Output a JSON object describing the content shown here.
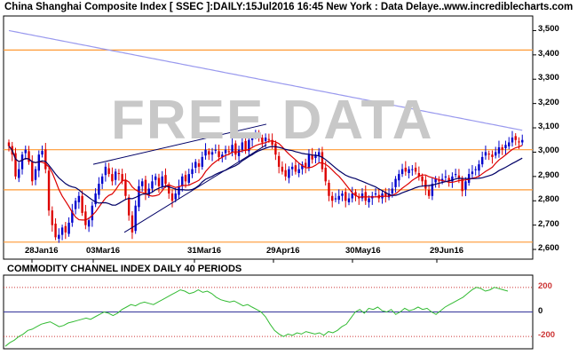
{
  "header": {
    "title": "China Shanghai Composite Index [ SSEC ]:DAILY:15Jul2016 16:45 New York : Data Delaye..",
    "site": "www.incrediblecharts.com"
  },
  "watermark": "FREE DATA",
  "indicator_title": "COMMODITY CHANNEL INDEX DAILY 40 PERIODS",
  "colors": {
    "up_candle": "#0000cc",
    "down_candle": "#dd0000",
    "ma_short": "#dd0000",
    "ma_mid": "#000066",
    "ma_long": "#9999ee",
    "support_lines": "#ff9933",
    "cci_line": "#33bb33"
  },
  "chart_data": [
    {
      "type": "candlestick",
      "ylim": [
        2560,
        3560
      ],
      "yticks": [
        2600,
        2700,
        2800,
        2900,
        3000,
        3100,
        3200,
        3300,
        3400,
        3500
      ],
      "ytick_labels": [
        "2,600",
        "2,700",
        "2,800",
        "2,900",
        "3,000",
        "3,100",
        "3,200",
        "3,300",
        "3,400",
        "3,500"
      ],
      "xtick_labels": [
        "28Jan16",
        "03Mar16",
        "31Mar16",
        "29Apr16",
        "30May16",
        "29Jun16"
      ],
      "horizontal_levels": [
        3420,
        3010,
        2845,
        2630
      ],
      "close": [
        3025,
        2990,
        2900,
        2930,
        2990,
        3010,
        2960,
        2880,
        2930,
        2990,
        3005,
        2930,
        2760,
        2700,
        2650,
        2660,
        2690,
        2670,
        2710,
        2760,
        2800,
        2820,
        2750,
        2700,
        2720,
        2780,
        2830,
        2870,
        2900,
        2940,
        2910,
        2880,
        2920,
        2910,
        2880,
        2820,
        2740,
        2670,
        2780,
        2860,
        2880,
        2830,
        2850,
        2880,
        2900,
        2860,
        2900,
        2870,
        2830,
        2800,
        2830,
        2860,
        2900,
        2880,
        2910,
        2930,
        2960,
        2940,
        2980,
        3010,
        2990,
        3000,
        3010,
        2980,
        2990,
        3010,
        3000,
        3030,
        2990,
        3010,
        3040,
        3010,
        3050,
        3060,
        3070,
        3060,
        3040,
        3060,
        3050,
        3030,
        2990,
        2940,
        2920,
        2900,
        2930,
        2940,
        2920,
        2930,
        2950,
        2940,
        2990,
        2970,
        2990,
        3000,
        2930,
        2880,
        2820,
        2800,
        2810,
        2820,
        2830,
        2800,
        2810,
        2830,
        2820,
        2810,
        2830,
        2800,
        2810,
        2820,
        2830,
        2810,
        2830,
        2820,
        2830,
        2850,
        2890,
        2910,
        2930,
        2920,
        2930,
        2930,
        2920,
        2900,
        2880,
        2850,
        2820,
        2870,
        2890,
        2880,
        2890,
        2900,
        2880,
        2900,
        2910,
        2890,
        2840,
        2880,
        2910,
        2920,
        2930,
        2950,
        2980,
        3000,
        2990,
        2980,
        3000,
        3020,
        3010,
        3030,
        3040,
        3060,
        3050,
        3040,
        3050
      ]
    },
    {
      "type": "line",
      "title": "COMMODITY CHANNEL INDEX DAILY 40 PERIODS",
      "ylim": [
        -300,
        300
      ],
      "yticks": [
        200,
        0,
        -200
      ],
      "ytick_labels": [
        "200",
        "0",
        "-200"
      ],
      "values": [
        -280,
        -250,
        -230,
        -200,
        -180,
        -150,
        -140,
        -120,
        -100,
        -90,
        -80,
        -100,
        -120,
        -110,
        -90,
        -80,
        -70,
        -60,
        -50,
        -60,
        -40,
        -20,
        0,
        -10,
        -30,
        -10,
        20,
        40,
        60,
        50,
        70,
        80,
        70,
        60,
        80,
        100,
        120,
        140,
        160,
        180,
        170,
        150,
        160,
        180,
        160,
        170,
        150,
        120,
        100,
        90,
        80,
        90,
        70,
        50,
        60,
        40,
        20,
        0,
        -40,
        -100,
        -150,
        -180,
        -200,
        -180,
        -190,
        -170,
        -180,
        -160,
        -170,
        -180,
        -170,
        -190,
        -160,
        -170,
        -150,
        -120,
        -100,
        -50,
        0,
        20,
        -10,
        30,
        20,
        40,
        10,
        0,
        20,
        -20,
        0,
        30,
        10,
        20,
        40,
        20,
        30,
        0,
        -20,
        10,
        40,
        60,
        80,
        100,
        120,
        150,
        180,
        200,
        190,
        170,
        180,
        200,
        190,
        180,
        170
      ]
    }
  ]
}
